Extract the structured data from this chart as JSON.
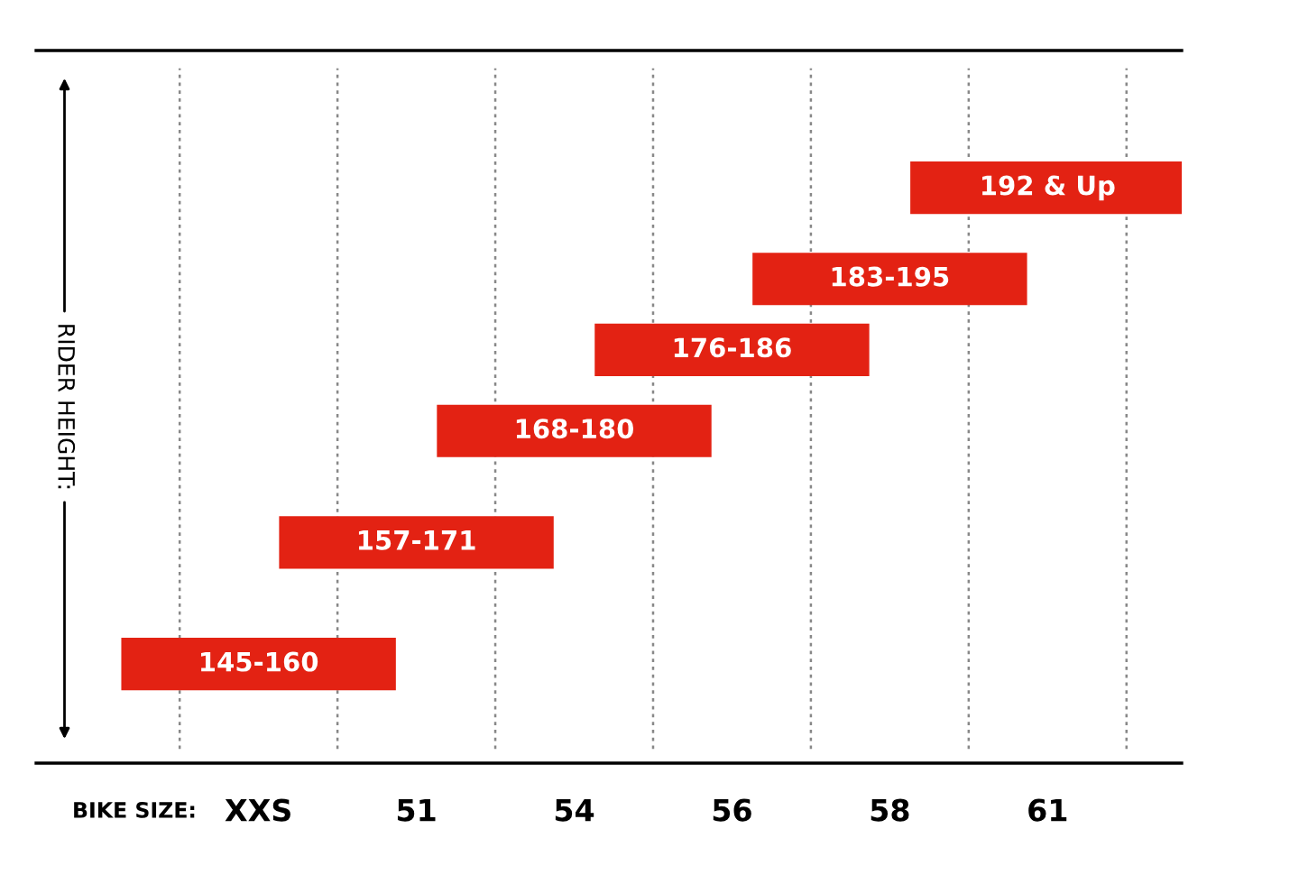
{
  "chart_data": {
    "type": "other",
    "xlabel": "BIKE SIZE:",
    "ylabel": "RIDER HEIGHT:",
    "categories": [
      "XXS",
      "51",
      "54",
      "56",
      "58",
      "61"
    ],
    "value_labels": [
      "145-160",
      "157-171",
      "168-180",
      "176-186",
      "183-195",
      "192 & Up"
    ],
    "values": [
      145,
      157,
      168,
      176,
      183,
      192
    ],
    "color": "#e32213"
  }
}
